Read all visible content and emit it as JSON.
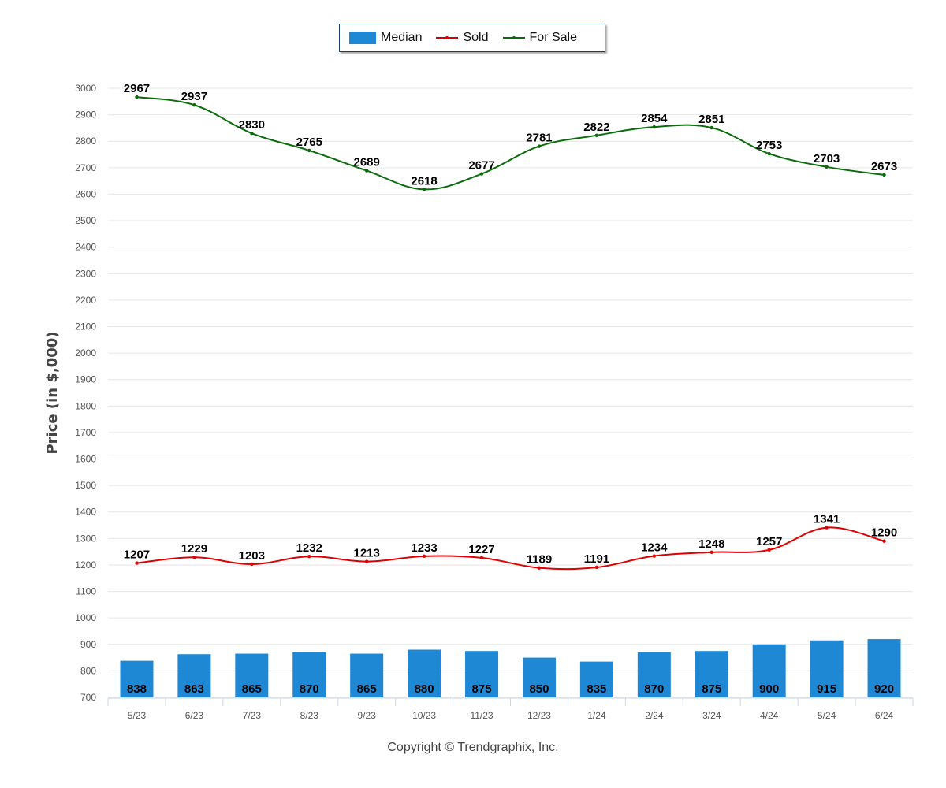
{
  "chart_data": {
    "type": "bar",
    "categories": [
      "5/23",
      "6/23",
      "7/23",
      "8/23",
      "9/23",
      "10/23",
      "11/23",
      "12/23",
      "1/24",
      "2/24",
      "3/24",
      "4/24",
      "5/24",
      "6/24"
    ],
    "ylabel": "Price (in $,000)",
    "ylim": [
      700,
      3000
    ],
    "yticks": [
      700,
      800,
      900,
      1000,
      1100,
      1200,
      1300,
      1400,
      1500,
      1600,
      1700,
      1800,
      1900,
      2000,
      2100,
      2200,
      2300,
      2400,
      2500,
      2600,
      2700,
      2800,
      2900,
      3000
    ],
    "grid": true,
    "legend_position": "top-center",
    "series": [
      {
        "name": "Median",
        "type": "bar",
        "color": "#1f88d4",
        "values": [
          838,
          863,
          865,
          870,
          865,
          880,
          875,
          850,
          835,
          870,
          875,
          900,
          915,
          920
        ]
      },
      {
        "name": "Sold",
        "type": "line",
        "color": "#e00000",
        "values": [
          1207,
          1229,
          1203,
          1232,
          1213,
          1233,
          1227,
          1189,
          1191,
          1234,
          1248,
          1257,
          1341,
          1290
        ]
      },
      {
        "name": "For Sale",
        "type": "line",
        "color": "#0a6b0a",
        "values": [
          2967,
          2937,
          2830,
          2765,
          2689,
          2618,
          2677,
          2781,
          2822,
          2854,
          2851,
          2753,
          2703,
          2673
        ]
      }
    ]
  },
  "footer": {
    "copyright": "Copyright © Trendgraphix, Inc."
  }
}
